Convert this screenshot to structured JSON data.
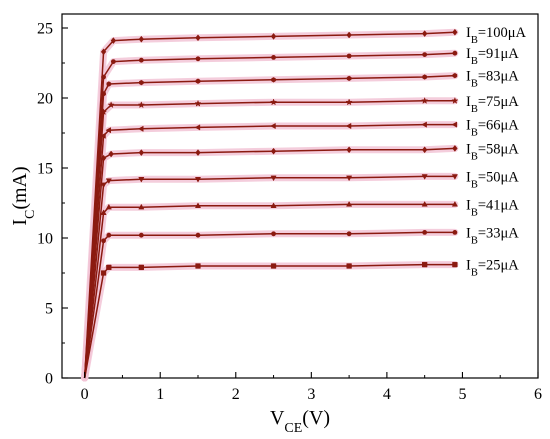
{
  "chart_data": {
    "type": "line",
    "xlabel": "V(V)",
    "xlabel_main": "V",
    "xlabel_sub": "CE",
    "xlabel_suffix": "(V)",
    "ylabel_main": "I",
    "ylabel_sub": "C",
    "ylabel_suffix": "(mA)",
    "xlim": [
      -0.3,
      6
    ],
    "ylim": [
      0,
      26
    ],
    "xticks": [
      0,
      1,
      2,
      3,
      4,
      5,
      6
    ],
    "yticks": [
      0,
      5,
      10,
      15,
      20,
      25
    ],
    "grid": false,
    "line_color": "#8b1a10",
    "halo_color": "#f2c4d6",
    "series": [
      {
        "name": "I_B=100μA",
        "label_main": "I",
        "label_sub": "B",
        "label_suffix": "=100μA",
        "marker": "diamond",
        "x": [
          0,
          0.25,
          0.38,
          0.75,
          1.5,
          2.5,
          3.5,
          4.5,
          4.9
        ],
        "y": [
          0,
          23.3,
          24.1,
          24.2,
          24.3,
          24.4,
          24.5,
          24.6,
          24.7
        ]
      },
      {
        "name": "I_B=91μA",
        "label_main": "I",
        "label_sub": "B",
        "label_suffix": "=91μA",
        "marker": "circle",
        "x": [
          0,
          0.25,
          0.38,
          0.75,
          1.5,
          2.5,
          3.5,
          4.5,
          4.9
        ],
        "y": [
          0,
          21.5,
          22.6,
          22.7,
          22.8,
          22.9,
          23.0,
          23.1,
          23.2
        ]
      },
      {
        "name": "I_B=83μA",
        "label_main": "I",
        "label_sub": "B",
        "label_suffix": "=83μA",
        "marker": "hexagon",
        "x": [
          0,
          0.25,
          0.32,
          0.75,
          1.5,
          2.5,
          3.5,
          4.5,
          4.9
        ],
        "y": [
          0,
          20.3,
          21.0,
          21.1,
          21.2,
          21.3,
          21.4,
          21.5,
          21.6
        ]
      },
      {
        "name": "I_B=75μA",
        "label_main": "I",
        "label_sub": "B",
        "label_suffix": "=75μA",
        "marker": "star",
        "x": [
          0,
          0.25,
          0.35,
          0.75,
          1.5,
          2.5,
          3.5,
          4.5,
          4.9
        ],
        "y": [
          0,
          19.0,
          19.5,
          19.5,
          19.6,
          19.7,
          19.7,
          19.8,
          19.8
        ]
      },
      {
        "name": "I_B=66μA",
        "label_main": "I",
        "label_sub": "B",
        "label_suffix": "=66μA",
        "marker": "triangle-left",
        "x": [
          0,
          0.25,
          0.32,
          0.75,
          1.5,
          2.5,
          3.5,
          4.5,
          4.9
        ],
        "y": [
          0,
          17.3,
          17.7,
          17.8,
          17.9,
          18.0,
          18.0,
          18.1,
          18.1
        ]
      },
      {
        "name": "I_B=58μA",
        "label_main": "I",
        "label_sub": "B",
        "label_suffix": "=58μA",
        "marker": "diamond",
        "x": [
          0,
          0.25,
          0.35,
          0.75,
          1.5,
          2.5,
          3.5,
          4.5,
          4.9
        ],
        "y": [
          0,
          15.7,
          16.0,
          16.1,
          16.1,
          16.2,
          16.3,
          16.3,
          16.4
        ]
      },
      {
        "name": "I_B=50μA",
        "label_main": "I",
        "label_sub": "B",
        "label_suffix": "=50μA",
        "marker": "triangle-down",
        "x": [
          0,
          0.25,
          0.32,
          0.75,
          1.5,
          2.5,
          3.5,
          4.5,
          4.9
        ],
        "y": [
          0,
          13.8,
          14.1,
          14.2,
          14.2,
          14.3,
          14.3,
          14.4,
          14.4
        ]
      },
      {
        "name": "I_B=41μA",
        "label_main": "I",
        "label_sub": "B",
        "label_suffix": "=41μA",
        "marker": "triangle-up",
        "x": [
          0,
          0.25,
          0.32,
          0.75,
          1.5,
          2.5,
          3.5,
          4.5,
          4.9
        ],
        "y": [
          0,
          11.8,
          12.2,
          12.2,
          12.3,
          12.3,
          12.4,
          12.4,
          12.4
        ]
      },
      {
        "name": "I_B=33μA",
        "label_main": "I",
        "label_sub": "B",
        "label_suffix": "=33μA",
        "marker": "circle",
        "x": [
          0,
          0.25,
          0.32,
          0.75,
          1.5,
          2.5,
          3.5,
          4.5,
          4.9
        ],
        "y": [
          0,
          9.8,
          10.2,
          10.2,
          10.2,
          10.3,
          10.3,
          10.4,
          10.4
        ]
      },
      {
        "name": "I_B=25μA",
        "label_main": "I",
        "label_sub": "B",
        "label_suffix": "=25μA",
        "marker": "square",
        "x": [
          0,
          0.25,
          0.32,
          0.75,
          1.5,
          2.5,
          3.5,
          4.5,
          4.9
        ],
        "y": [
          0,
          7.5,
          7.9,
          7.9,
          8.0,
          8.0,
          8.0,
          8.1,
          8.1
        ]
      }
    ]
  }
}
